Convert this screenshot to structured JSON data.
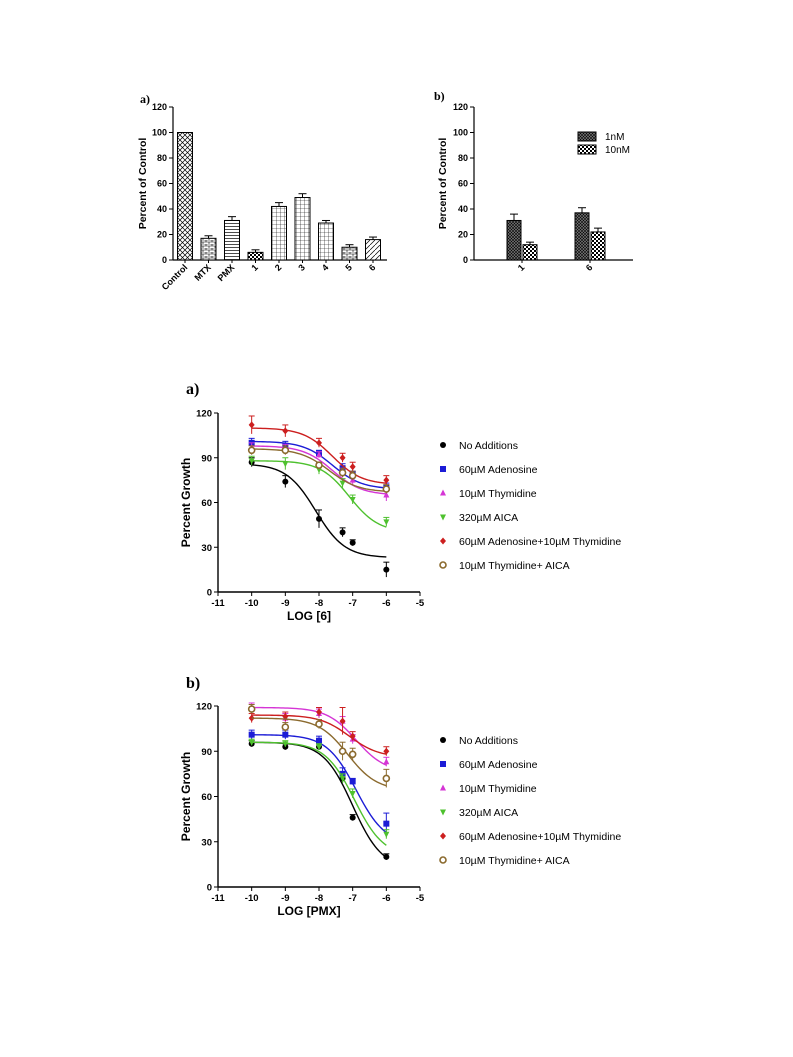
{
  "chart_data": [
    {
      "id": "bar_a",
      "type": "bar",
      "panel_label": "a)",
      "ylabel": "Percent of Control",
      "ylim": [
        0,
        120
      ],
      "yticks": [
        0,
        20,
        40,
        60,
        80,
        100,
        120
      ],
      "categories": [
        "Control",
        "MTX",
        "PMX",
        "1",
        "2",
        "3",
        "4",
        "5",
        "6"
      ],
      "values": [
        100,
        17,
        31,
        6,
        42,
        49,
        29,
        10,
        16
      ],
      "errors": [
        0,
        2,
        3,
        2,
        3,
        3,
        2,
        2,
        2
      ],
      "patterns": [
        "crosshatch",
        "brick",
        "hlines",
        "checker",
        "grid",
        "grid",
        "grid",
        "brick",
        "diagonal"
      ]
    },
    {
      "id": "bar_b",
      "type": "bar",
      "panel_label": "b)",
      "ylabel": "Percent of Control",
      "ylim": [
        0,
        120
      ],
      "yticks": [
        0,
        20,
        40,
        60,
        80,
        100,
        120
      ],
      "categories": [
        "1",
        "6"
      ],
      "series": [
        {
          "name": "1nM",
          "values": [
            31,
            37
          ],
          "errors": [
            5,
            4
          ],
          "pattern": "dense"
        },
        {
          "name": "10nM",
          "values": [
            12,
            22
          ],
          "errors": [
            2,
            3
          ],
          "pattern": "checker"
        }
      ],
      "legend": "top-right"
    },
    {
      "id": "line_a",
      "type": "scatter",
      "panel_label": "a)",
      "xlabel": "LOG [6]",
      "ylabel": "Percent Growth",
      "xlim": [
        -11,
        -5
      ],
      "ylim": [
        0,
        120
      ],
      "xticks": [
        -11,
        -10,
        -9,
        -8,
        -7,
        -6,
        -5
      ],
      "yticks": [
        0,
        30,
        60,
        90,
        120
      ],
      "x": [
        -10,
        -9,
        -8,
        -7.3,
        -7,
        -6
      ],
      "legend": "right",
      "series": [
        {
          "name": "No Additions",
          "color": "#000000",
          "marker": "circle",
          "y": [
            87,
            74,
            49,
            40,
            33,
            15
          ],
          "err": [
            3,
            4,
            6,
            3,
            2,
            5
          ],
          "fit": {
            "top": 86,
            "bottom": 23,
            "ec50": -8.1
          }
        },
        {
          "name": "60µM Adenosine",
          "color": "#1c1cd6",
          "marker": "square",
          "y": [
            100,
            98,
            93,
            83,
            79,
            70
          ],
          "err": [
            3,
            3,
            2,
            3,
            2,
            3
          ],
          "fit": {
            "top": 101,
            "bottom": 69,
            "ec50": -7.6
          }
        },
        {
          "name": "10µM Thymidine",
          "color": "#d535d5",
          "marker": "triangle-up",
          "y": [
            97,
            96,
            92,
            80,
            75,
            65
          ],
          "err": [
            3,
            3,
            2,
            3,
            3,
            4
          ],
          "fit": {
            "top": 98,
            "bottom": 65,
            "ec50": -7.6
          }
        },
        {
          "name": "320µM AICA",
          "color": "#4ec12e",
          "marker": "triangle-down",
          "y": [
            88,
            86,
            82,
            73,
            62,
            47
          ],
          "err": [
            3,
            4,
            3,
            3,
            3,
            3
          ],
          "fit": {
            "top": 88,
            "bottom": 40,
            "ec50": -7.1
          }
        },
        {
          "name": "60µM Adenosine+10µM Thymidine",
          "color": "#cc1f1f",
          "marker": "diamond",
          "y": [
            112,
            108,
            100,
            90,
            84,
            75
          ],
          "err": [
            6,
            4,
            3,
            3,
            3,
            3
          ],
          "fit": {
            "top": 110,
            "bottom": 72,
            "ec50": -7.6
          }
        },
        {
          "name": "10µM Thymidine+ AICA",
          "color": "#8b6a2e",
          "marker": "circle-open",
          "y": [
            95,
            95,
            85,
            80,
            78,
            69
          ],
          "err": [
            3,
            3,
            2,
            3,
            3,
            3
          ],
          "fit": {
            "top": 96,
            "bottom": 67,
            "ec50": -7.7
          }
        }
      ]
    },
    {
      "id": "line_b",
      "type": "scatter",
      "panel_label": "b)",
      "xlabel": "LOG [PMX]",
      "ylabel": "Percent Growth",
      "xlim": [
        -11,
        -5
      ],
      "ylim": [
        0,
        120
      ],
      "xticks": [
        -11,
        -10,
        -9,
        -8,
        -7,
        -6,
        -5
      ],
      "yticks": [
        0,
        30,
        60,
        90,
        120
      ],
      "x": [
        -10,
        -9,
        -8,
        -7.3,
        -7,
        -6
      ],
      "legend": "right",
      "series": [
        {
          "name": "No Additions",
          "color": "#000000",
          "marker": "circle",
          "y": [
            95,
            93,
            93,
            72,
            46,
            20
          ],
          "err": [
            2,
            2,
            2,
            3,
            2,
            2
          ],
          "fit": {
            "top": 96,
            "bottom": 12,
            "ec50": -7.0
          }
        },
        {
          "name": "60µM Adenosine",
          "color": "#1c1cd6",
          "marker": "square",
          "y": [
            101,
            101,
            97,
            75,
            70,
            42
          ],
          "err": [
            3,
            3,
            3,
            4,
            2,
            7
          ],
          "fit": {
            "top": 101,
            "bottom": 28,
            "ec50": -6.9
          }
        },
        {
          "name": "10µM Thymidine",
          "color": "#d535d5",
          "marker": "triangle-up",
          "y": [
            119,
            112,
            115,
            110,
            98,
            83
          ],
          "err": [
            3,
            3,
            3,
            3,
            3,
            3
          ],
          "fit": {
            "top": 119,
            "bottom": 76,
            "ec50": -6.9
          }
        },
        {
          "name": "320µM AICA",
          "color": "#4ec12e",
          "marker": "triangle-down",
          "y": [
            96,
            95,
            93,
            72,
            62,
            35
          ],
          "err": [
            2,
            2,
            2,
            3,
            3,
            3
          ],
          "fit": {
            "top": 96,
            "bottom": 20,
            "ec50": -6.95
          }
        },
        {
          "name": "60µM Adenosine+10µM Thymidine",
          "color": "#cc1f1f",
          "marker": "diamond",
          "y": [
            112,
            113,
            116,
            110,
            100,
            90
          ],
          "err": [
            3,
            3,
            3,
            9,
            3,
            3
          ],
          "fit": {
            "top": 114,
            "bottom": 86,
            "ec50": -7.1
          }
        },
        {
          "name": "10µM Thymidine+ AICA",
          "color": "#8b6a2e",
          "marker": "circle-open",
          "y": [
            118,
            106,
            108,
            90,
            88,
            72
          ],
          "err": [
            3,
            3,
            3,
            6,
            4,
            6
          ],
          "fit": {
            "top": 112,
            "bottom": 64,
            "ec50": -7.15
          }
        }
      ]
    }
  ]
}
